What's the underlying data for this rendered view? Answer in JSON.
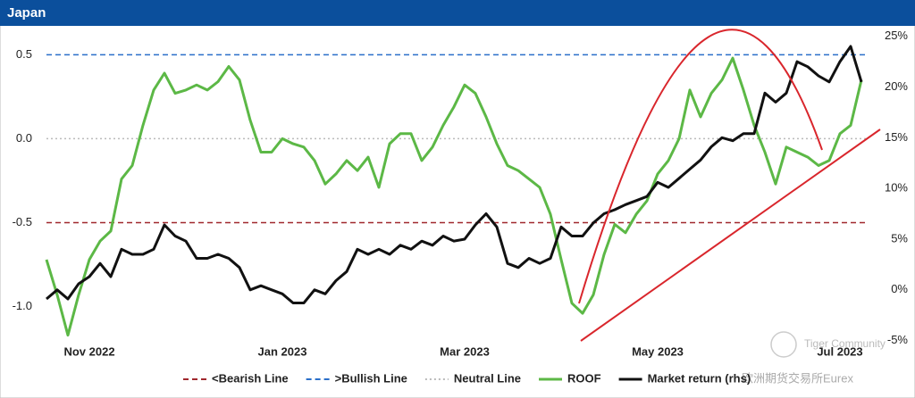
{
  "chart_data": {
    "type": "line",
    "title": "Japan",
    "categories": [
      null,
      null,
      null,
      null,
      "Nov 2022",
      null,
      null,
      null,
      null,
      null,
      null,
      null,
      null,
      null,
      null,
      null,
      null,
      null,
      null,
      null,
      null,
      null,
      "Jan 2023",
      null,
      null,
      null,
      null,
      null,
      null,
      null,
      null,
      null,
      null,
      null,
      null,
      null,
      null,
      null,
      null,
      "Mar 2023",
      null,
      null,
      null,
      null,
      null,
      null,
      null,
      null,
      null,
      null,
      null,
      null,
      null,
      null,
      null,
      null,
      null,
      "May 2023",
      null,
      null,
      null,
      null,
      null,
      null,
      null,
      null,
      null,
      null,
      null,
      null,
      null,
      null,
      null,
      null,
      "Jul 2023",
      null,
      null
    ],
    "series": [
      {
        "name": "ROOF",
        "color": "#5cb846",
        "axis": "y",
        "values": [
          -0.72,
          -0.93,
          -1.17,
          -0.93,
          -0.72,
          -0.61,
          -0.55,
          -0.24,
          -0.16,
          0.08,
          0.29,
          0.39,
          0.27,
          0.29,
          0.32,
          0.29,
          0.34,
          0.43,
          0.35,
          0.11,
          -0.08,
          -0.08,
          0.0,
          -0.03,
          -0.05,
          -0.13,
          -0.27,
          -0.21,
          -0.13,
          -0.19,
          -0.11,
          -0.29,
          -0.03,
          0.03,
          0.03,
          -0.13,
          -0.05,
          0.08,
          0.19,
          0.32,
          0.27,
          0.13,
          -0.03,
          -0.16,
          -0.19,
          -0.24,
          -0.29,
          -0.45,
          -0.72,
          -0.98,
          -1.04,
          -0.93,
          -0.69,
          -0.51,
          -0.56,
          -0.45,
          -0.37,
          -0.21,
          -0.13,
          0.0,
          0.29,
          0.13,
          0.27,
          0.35,
          0.48,
          0.29,
          0.08,
          -0.08,
          -0.27,
          -0.05,
          -0.08,
          -0.11,
          -0.16,
          -0.13,
          0.03,
          0.08,
          0.35
        ]
      },
      {
        "name": "Market return (rhs)",
        "color": "#111111",
        "axis": "y2",
        "values": [
          -0.9,
          0.0,
          -0.9,
          0.6,
          1.3,
          2.6,
          1.3,
          4.0,
          3.5,
          3.5,
          4.0,
          6.4,
          5.3,
          4.8,
          3.1,
          3.1,
          3.5,
          3.1,
          2.2,
          0.0,
          0.4,
          0.0,
          -0.4,
          -1.3,
          -1.3,
          0.0,
          -0.4,
          0.9,
          1.8,
          4.0,
          3.5,
          4.0,
          3.5,
          4.4,
          4.0,
          4.8,
          4.4,
          5.3,
          4.8,
          5.0,
          6.4,
          7.5,
          6.2,
          2.6,
          2.2,
          3.1,
          2.6,
          3.1,
          6.2,
          5.3,
          5.3,
          6.6,
          7.5,
          7.9,
          8.4,
          8.8,
          9.2,
          10.6,
          10.1,
          11.0,
          11.9,
          12.8,
          14.1,
          15.0,
          14.7,
          15.4,
          15.4,
          19.4,
          18.5,
          19.4,
          22.5,
          22.0,
          21.1,
          20.5,
          22.5,
          24.0,
          20.5
        ]
      }
    ],
    "reference_lines": [
      {
        "name": "<Bearish Line",
        "color": "#a0282d",
        "value": -0.5,
        "dash": "dashed"
      },
      {
        "name": ">Bullish Line",
        "color": "#2a6fc9",
        "value": 0.5,
        "dash": "dashed"
      },
      {
        "name": "Neutral Line",
        "color": "#bbbbbb",
        "value": 0.0,
        "dash": "dotted"
      }
    ],
    "legend_order": [
      "reference_lines.0",
      "reference_lines.1",
      "reference_lines.2",
      "series.0",
      "series.1"
    ],
    "ylim": [
      -1.22,
      0.64
    ],
    "yticks": [
      {
        "value": -1.0,
        "label": "-1.0"
      },
      -0.5,
      {
        "value": 0.0,
        "label": "0.0"
      },
      0.5
    ],
    "y2lim": [
      -5.3,
      25.5
    ],
    "y2ticks": [
      {
        "value": -5,
        "label": "-5%"
      },
      {
        "value": 0,
        "label": "0%"
      },
      {
        "value": 5,
        "label": "5%"
      },
      {
        "value": 10,
        "label": "10%"
      },
      {
        "value": 15,
        "label": "15%"
      },
      {
        "value": 20,
        "label": "20%"
      },
      {
        "value": 25,
        "label": "25%"
      }
    ],
    "watermarks": [
      "Tiger Community",
      "欧洲期货交易所Eurex"
    ]
  }
}
